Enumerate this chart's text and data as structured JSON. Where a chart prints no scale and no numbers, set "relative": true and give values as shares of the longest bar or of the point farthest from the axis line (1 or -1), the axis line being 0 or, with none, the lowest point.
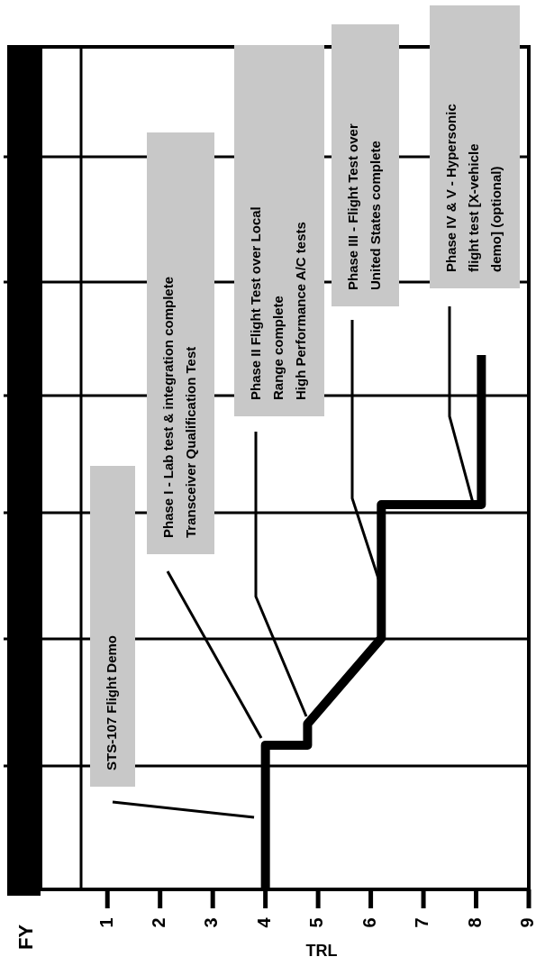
{
  "chart_data": {
    "type": "line",
    "xlabel": "TRL",
    "ylabel": "FY",
    "relative": true,
    "x": [
      4,
      4,
      4.8,
      4.8,
      6.2,
      6.2,
      8.1,
      8.1
    ],
    "series": [
      {
        "color": "#000000",
        "values": [
          0,
          0.27,
          0.27,
          0.31,
          0.47,
          0.72,
          0.72,
          1
        ]
      }
    ],
    "xlim": [
      0.5,
      9
    ],
    "xticks": [
      1,
      2,
      3,
      4,
      5,
      6,
      7,
      8,
      9
    ],
    "tick_labels": "x",
    "grid": "y",
    "line_style": "solid",
    "annotations": [
      "STS-107 Flight Demo",
      "Phase I - Lab test & integration complete\nTransceiver Qualification Test",
      "Phase II Flight Test over Local\nRange complete\nHigh Performance A/C tests",
      "Phase III - Flight Test over\nUnited States complete",
      "Phase IV & V - Hypersonic\nflight test [X-vehicle\ndemo] (optional)"
    ]
  }
}
